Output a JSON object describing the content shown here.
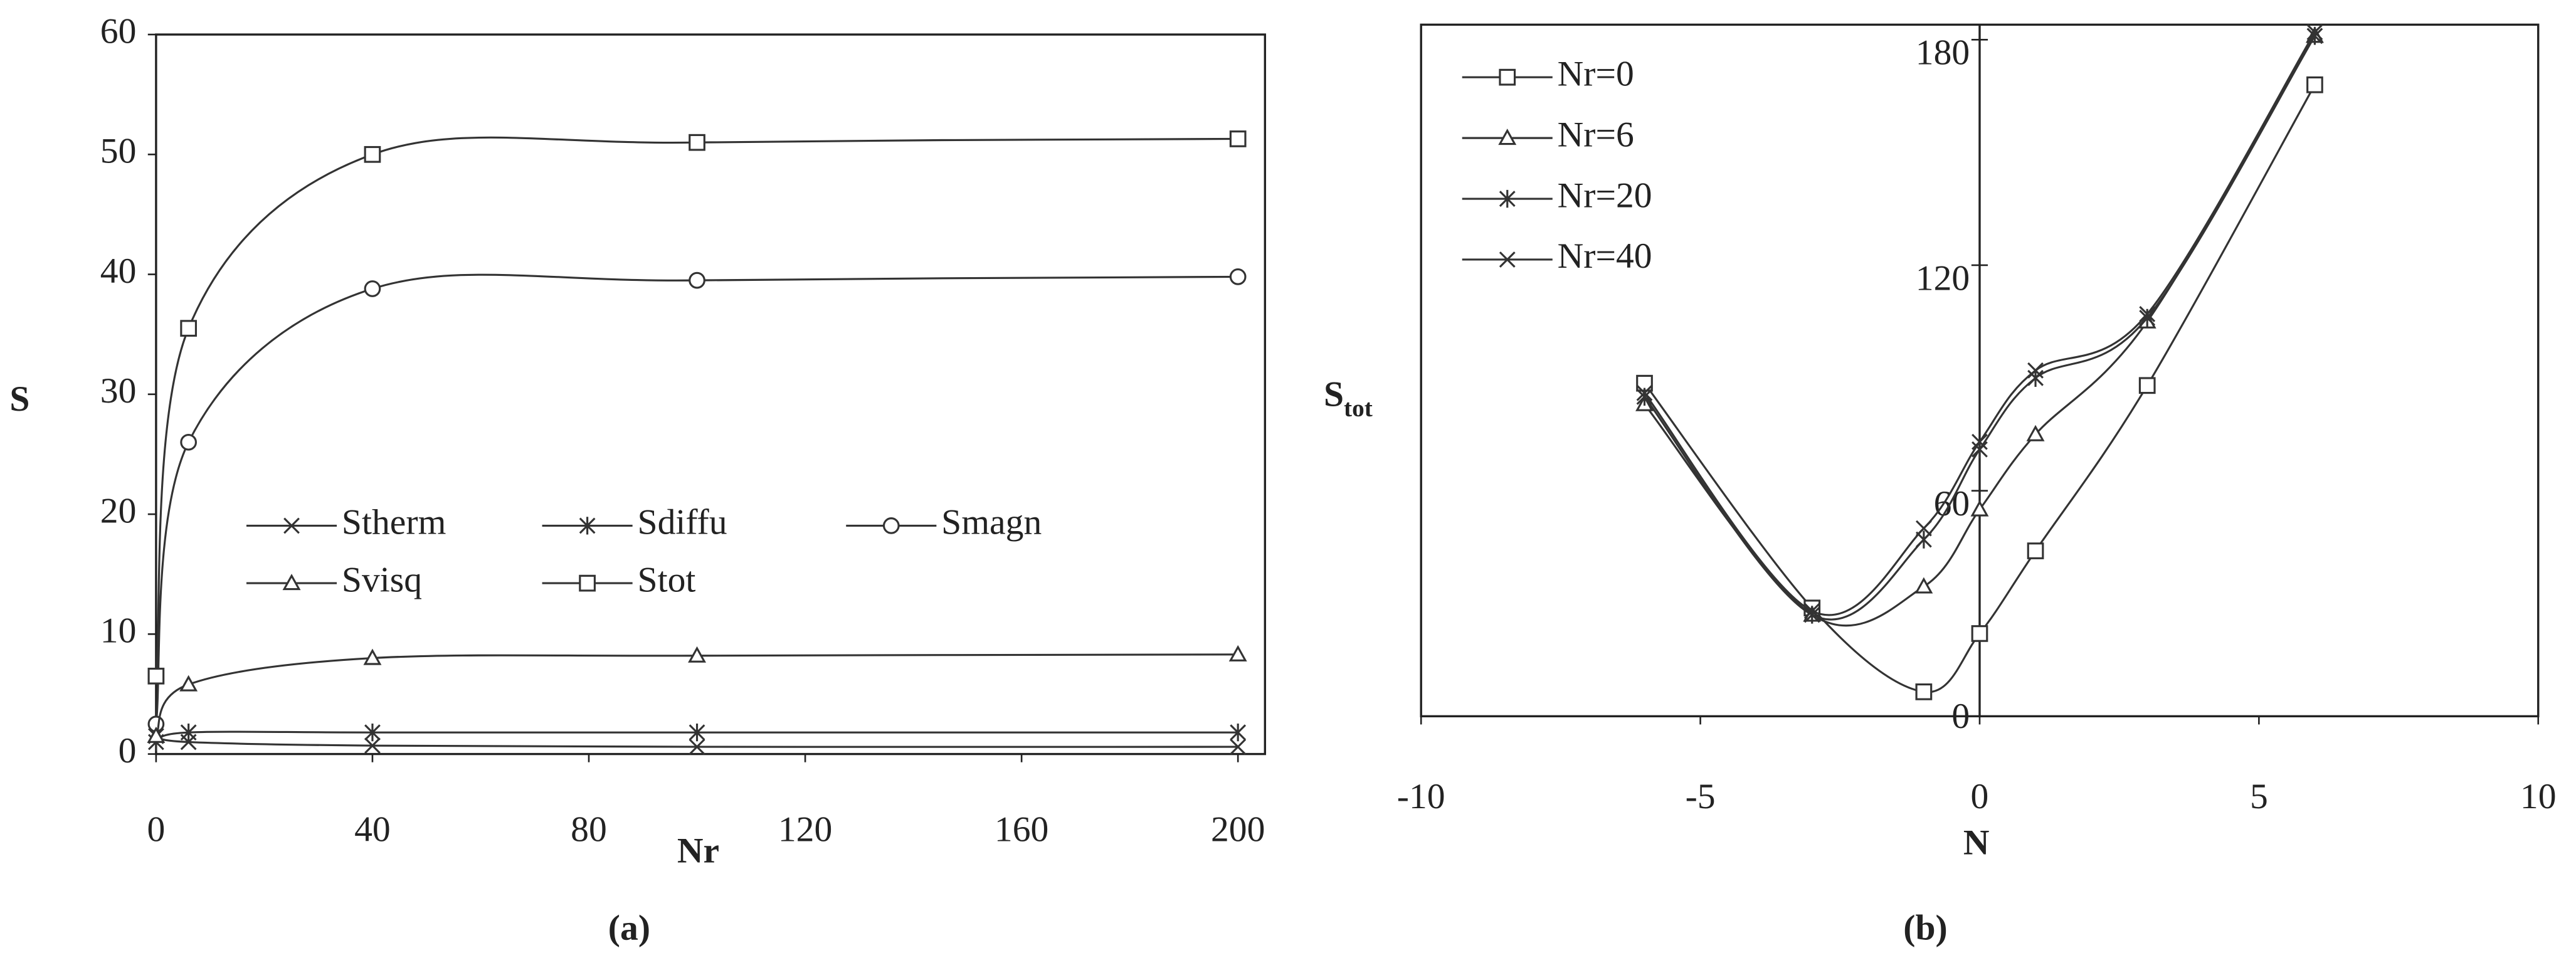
{
  "chart_data": [
    {
      "type": "line",
      "caption": "(a)",
      "x_label": "Nr",
      "y_label": "S",
      "x": [
        0,
        6,
        40,
        100,
        200
      ],
      "xlim": [
        0,
        205
      ],
      "xticks": [
        0,
        40,
        80,
        120,
        160,
        200
      ],
      "ylim": [
        0,
        60
      ],
      "yticks": [
        0,
        10,
        20,
        30,
        40,
        50,
        60
      ],
      "color": "#333333",
      "series": [
        {
          "name": "Stherm",
          "marker": "x",
          "values": [
            1.5,
            1.0,
            0.7,
            0.6,
            0.6
          ]
        },
        {
          "name": "Sdiffu",
          "marker": "asterisk",
          "values": [
            1.0,
            1.8,
            1.8,
            1.8,
            1.8
          ]
        },
        {
          "name": "Smagn",
          "marker": "circle",
          "values": [
            2.5,
            26,
            38.8,
            39.5,
            39.8
          ]
        },
        {
          "name": "Svisq",
          "marker": "triangle",
          "values": [
            1.5,
            5.8,
            8,
            8.2,
            8.3
          ]
        },
        {
          "name": "Stot",
          "marker": "square",
          "values": [
            6.5,
            35.5,
            50,
            51,
            51.3
          ]
        }
      ]
    },
    {
      "type": "line",
      "caption": "(b)",
      "x_label": "N",
      "y_label": "S",
      "y_label_subscript": "tot",
      "x": [
        -6,
        -3,
        -1,
        0,
        1,
        3,
        6
      ],
      "xlim": [
        -10,
        10
      ],
      "xticks": [
        -10,
        -5,
        0,
        5,
        10
      ],
      "ylim": [
        0,
        184
      ],
      "yticks": [
        0,
        60,
        120,
        180
      ],
      "color": "#333333",
      "series": [
        {
          "name": "Nr=0",
          "marker": "square",
          "values": [
            88.6,
            28.8,
            6.5,
            22,
            44,
            88,
            168
          ]
        },
        {
          "name": "Nr=6",
          "marker": "triangle",
          "values": [
            83,
            27,
            34.5,
            55,
            75,
            105,
            181
          ]
        },
        {
          "name": "Nr=20",
          "marker": "asterisk",
          "values": [
            85,
            27,
            47,
            71,
            90,
            106,
            181
          ]
        },
        {
          "name": "Nr=40",
          "marker": "x",
          "values": [
            86,
            28,
            50,
            73,
            92,
            107,
            182
          ]
        }
      ]
    }
  ]
}
